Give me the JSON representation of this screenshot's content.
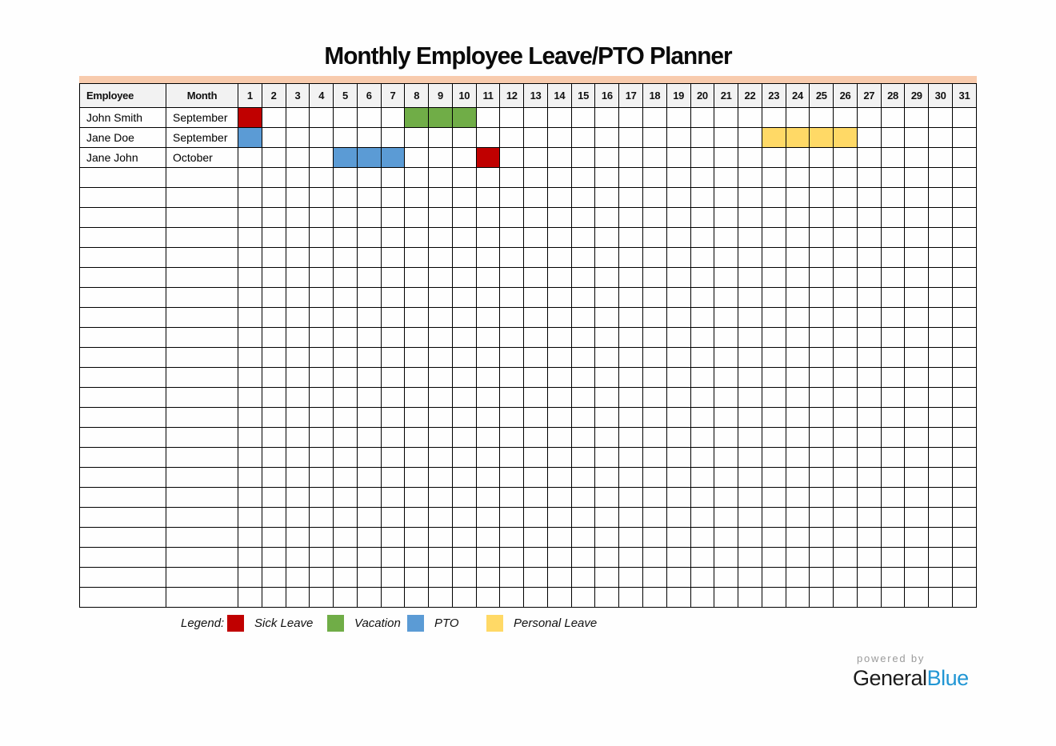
{
  "title": "Monthly Employee Leave/PTO Planner",
  "table": {
    "headers": {
      "employee": "Employee",
      "month": "Month"
    },
    "days": [
      1,
      2,
      3,
      4,
      5,
      6,
      7,
      8,
      9,
      10,
      11,
      12,
      13,
      14,
      15,
      16,
      17,
      18,
      19,
      20,
      21,
      22,
      23,
      24,
      25,
      26,
      27,
      28,
      29,
      30,
      31
    ],
    "rows": [
      {
        "employee": "John Smith",
        "month": "September",
        "cells": {
          "1": "sick",
          "8": "vacation",
          "9": "vacation",
          "10": "vacation"
        }
      },
      {
        "employee": "Jane Doe",
        "month": "September",
        "cells": {
          "1": "pto",
          "23": "personal",
          "24": "personal",
          "25": "personal",
          "26": "personal"
        }
      },
      {
        "employee": "Jane John",
        "month": "October",
        "cells": {
          "5": "pto",
          "6": "pto",
          "7": "pto",
          "11": "sick"
        }
      }
    ],
    "empty_row_count": 22
  },
  "legend": {
    "label": "Legend:",
    "items": [
      {
        "key": "sick",
        "name": "Sick Leave"
      },
      {
        "key": "vacation",
        "name": "Vacation"
      },
      {
        "key": "pto",
        "name": "PTO"
      },
      {
        "key": "personal",
        "name": "Personal Leave"
      }
    ]
  },
  "branding": {
    "powered_by": "powered by",
    "brand_first": "General",
    "brand_second": "Blue"
  },
  "colors": {
    "sick": "#C00000",
    "vacation": "#70AD47",
    "pto": "#5B9BD5",
    "personal": "#FFD966",
    "accent_bar": "#F8CBAD",
    "header_bg": "#F2F2F2",
    "brand_blue": "#2196D4",
    "powered_by_gray": "#9B9B9B"
  }
}
